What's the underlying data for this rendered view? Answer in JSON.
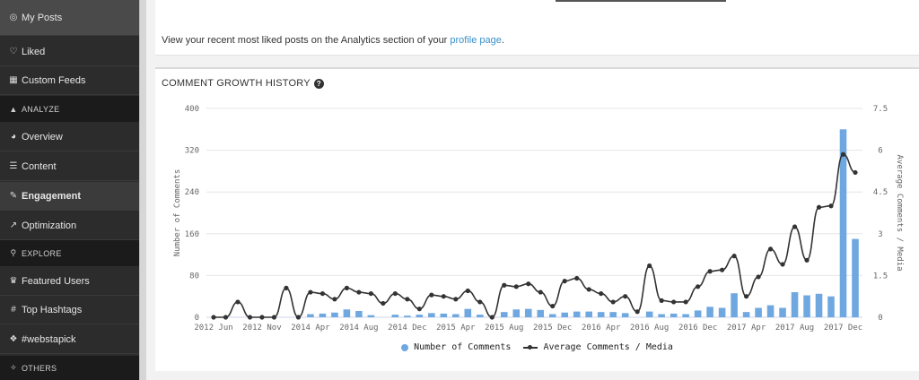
{
  "sidebar": {
    "items": [
      {
        "id": "my-posts",
        "icon": "instagram-icon",
        "glyph": "◎",
        "label": "My Posts",
        "kind": "item",
        "state": "active"
      },
      {
        "id": "liked",
        "icon": "heart-icon",
        "glyph": "♡",
        "label": "Liked",
        "kind": "item",
        "state": ""
      },
      {
        "id": "custom-feeds",
        "icon": "grid-icon",
        "glyph": "▦",
        "label": "Custom Feeds",
        "kind": "item",
        "state": ""
      },
      {
        "id": "analyze",
        "icon": "area-chart-icon",
        "glyph": "▲",
        "label": "ANALYZE",
        "kind": "section",
        "state": ""
      },
      {
        "id": "overview",
        "icon": "dashboard-icon",
        "glyph": "◕",
        "label": "Overview",
        "kind": "item",
        "state": ""
      },
      {
        "id": "content",
        "icon": "list-icon",
        "glyph": "☰",
        "label": "Content",
        "kind": "item",
        "state": ""
      },
      {
        "id": "engagement",
        "icon": "comments-icon",
        "glyph": "✎",
        "label": "Engagement",
        "kind": "item",
        "state": "bold"
      },
      {
        "id": "optimization",
        "icon": "line-chart-icon",
        "glyph": "↗",
        "label": "Optimization",
        "kind": "item",
        "state": ""
      },
      {
        "id": "explore",
        "icon": "search-icon",
        "glyph": "⚲",
        "label": "EXPLORE",
        "kind": "section",
        "state": ""
      },
      {
        "id": "featured-users",
        "icon": "trophy-icon",
        "glyph": "♛",
        "label": "Featured Users",
        "kind": "item",
        "state": ""
      },
      {
        "id": "top-hashtags",
        "icon": "hashtag-icon",
        "glyph": "#",
        "label": "Top Hashtags",
        "kind": "item",
        "state": ""
      },
      {
        "id": "webstapick",
        "icon": "bookmark-icon",
        "glyph": "❖",
        "label": "#webstapick",
        "kind": "item",
        "state": ""
      },
      {
        "id": "others",
        "icon": "gavel-icon",
        "glyph": "✧",
        "label": "OTHERS",
        "kind": "section",
        "state": ""
      }
    ]
  },
  "top_card": {
    "text_before": "View your recent most liked posts on the Analytics section of your ",
    "link_text": "profile page",
    "text_after": "."
  },
  "chart_card": {
    "title": "COMMENT GROWTH HISTORY",
    "help_icon": "question-circle-icon"
  },
  "chart_data": {
    "type": "bar",
    "title": "COMMENT GROWTH HISTORY",
    "ylabel": "Number of Comments",
    "y2label": "Average Comments / Media",
    "ylim": [
      0,
      400
    ],
    "y2lim": [
      0,
      7.5
    ],
    "yticks": [
      0,
      80,
      160,
      240,
      320,
      400
    ],
    "y2ticks": [
      "0",
      "1.5",
      "3",
      "4.5",
      "6",
      "7.5"
    ],
    "xtick_labels": [
      "2012 Jun",
      "2012 Nov",
      "2014 Apr",
      "2014 Aug",
      "2014 Dec",
      "2015 Apr",
      "2015 Aug",
      "2015 Dec",
      "2016 Apr",
      "2016 Aug",
      "2016 Dec",
      "2017 Apr",
      "2017 Aug",
      "2017 Dec"
    ],
    "xtick_positions": [
      0,
      4,
      8,
      12,
      16,
      20,
      24,
      28,
      32,
      36,
      40,
      44,
      48,
      52
    ],
    "legend_position": "bottom-center",
    "grid": true,
    "series": [
      {
        "name": "Number of Comments",
        "kind": "bar",
        "axis": "left",
        "color": "#6fa8e0",
        "values": [
          0,
          0,
          0,
          0,
          0,
          0,
          0,
          0,
          6,
          7,
          9,
          15,
          12,
          4,
          0,
          5,
          3,
          5,
          8,
          7,
          6,
          16,
          5,
          0,
          10,
          15,
          16,
          14,
          6,
          9,
          11,
          11,
          10,
          10,
          8,
          0,
          11,
          6,
          7,
          6,
          13,
          20,
          18,
          46,
          10,
          18,
          23,
          18,
          48,
          42,
          45,
          40,
          360,
          150
        ]
      },
      {
        "name": "Average Comments / Media",
        "kind": "line",
        "axis": "right",
        "color": "#333333",
        "values": [
          0,
          0,
          0.55,
          0,
          0,
          0,
          1.05,
          0,
          0.9,
          0.85,
          0.65,
          1.05,
          0.9,
          0.85,
          0.5,
          0.85,
          0.65,
          0.3,
          0.8,
          0.75,
          0.65,
          0.95,
          0.55,
          0,
          1.15,
          1.1,
          1.2,
          0.9,
          0.4,
          1.3,
          1.4,
          1.0,
          0.85,
          0.55,
          0.75,
          0.2,
          1.85,
          0.6,
          0.55,
          0.55,
          1.1,
          1.65,
          1.7,
          2.2,
          0.75,
          1.45,
          2.45,
          1.9,
          3.25,
          2.05,
          3.95,
          4.0,
          5.85,
          5.2
        ]
      }
    ]
  }
}
